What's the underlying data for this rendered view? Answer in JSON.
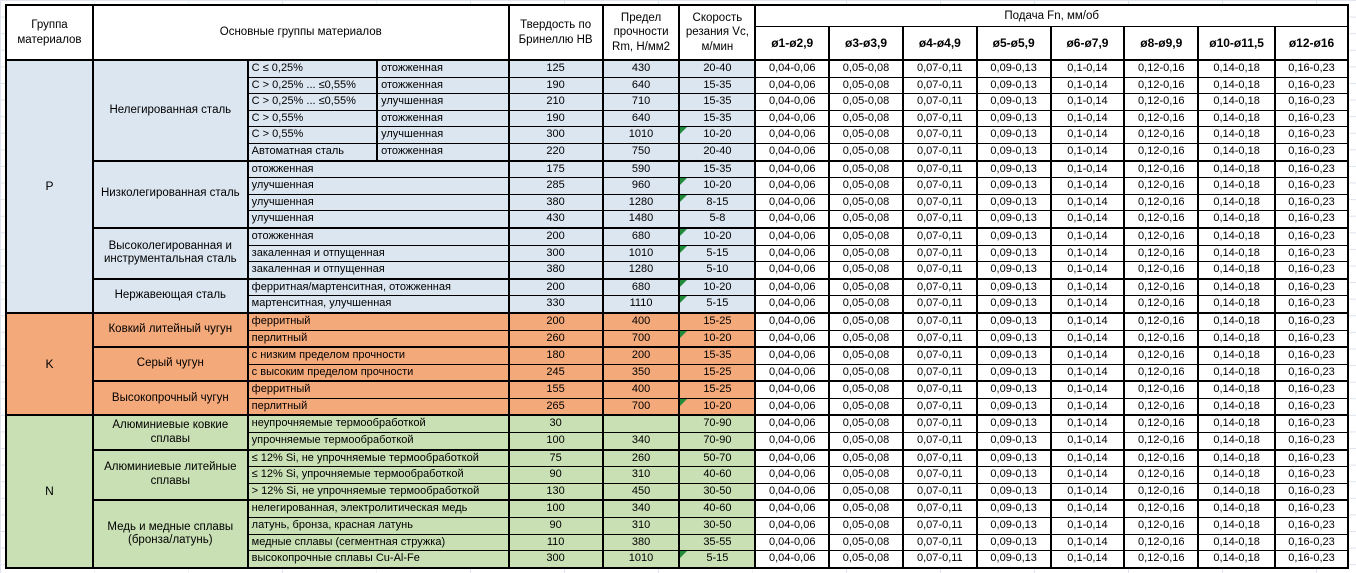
{
  "header": {
    "group_col": "Группа материалов",
    "materials_col": "Основные группы материалов",
    "hardness_col": "Твердость по Бринеллю HB",
    "strength_col": "Предел прочности Rm, Н/мм2",
    "speed_col": "Скорость резания Vc, м/мин",
    "feed_group": "Подача Fn, мм/об",
    "feed_cols": [
      "ø1-ø2,9",
      "ø3-ø3,9",
      "ø4-ø4,9",
      "ø5-ø5,9",
      "ø6-ø7,9",
      "ø8-ø9,9",
      "ø10-ø11,5",
      "ø12-ø16"
    ]
  },
  "feed_values": [
    "0,04-0,06",
    "0,05-0,08",
    "0,07-0,11",
    "0,09-0,13",
    "0,1-0,14",
    "0,12-0,16",
    "0,14-0,18",
    "0,16-0,23"
  ],
  "colors": {
    "section_p": "#DCE6F1",
    "section_k": "#F4A97A",
    "section_n": "#C9DFB4",
    "marker": "#228B3B",
    "gridline": "#DFE4EE",
    "border": "#000000"
  },
  "sections": [
    {
      "code": "P",
      "color": "#DCE6F1",
      "subgroups": [
        {
          "name": "Нелегированная сталь",
          "rows": [
            {
              "desc": [
                "C ≤ 0,25%",
                "отожженная"
              ],
              "hb": "125",
              "rm": "430",
              "vc": "20-40",
              "marker": false
            },
            {
              "desc": [
                "C > 0,25% ... ≤0,55%",
                "отожженная"
              ],
              "hb": "190",
              "rm": "640",
              "vc": "15-35",
              "marker": false
            },
            {
              "desc": [
                "C > 0,25% ... ≤0,55%",
                "улучшенная"
              ],
              "hb": "210",
              "rm": "710",
              "vc": "15-35",
              "marker": false
            },
            {
              "desc": [
                "C > 0,55%",
                "отожженная"
              ],
              "hb": "190",
              "rm": "640",
              "vc": "15-35",
              "marker": false
            },
            {
              "desc": [
                "C > 0,55%",
                "улучшенная"
              ],
              "hb": "300",
              "rm": "1010",
              "vc": "10-20",
              "marker": true
            },
            {
              "desc": [
                "Автоматная сталь",
                "отожженная"
              ],
              "hb": "220",
              "rm": "750",
              "vc": "20-40",
              "marker": false
            }
          ]
        },
        {
          "name": "Низколегированная сталь",
          "rows": [
            {
              "desc": [
                "отожженная"
              ],
              "hb": "175",
              "rm": "590",
              "vc": "15-35",
              "marker": false
            },
            {
              "desc": [
                "улучшенная"
              ],
              "hb": "285",
              "rm": "960",
              "vc": "10-20",
              "marker": true
            },
            {
              "desc": [
                "улучшенная"
              ],
              "hb": "380",
              "rm": "1280",
              "vc": "8-15",
              "marker": true
            },
            {
              "desc": [
                "улучшенная"
              ],
              "hb": "430",
              "rm": "1480",
              "vc": "5-8",
              "marker": false
            }
          ]
        },
        {
          "name": "Высоколегированная и инструментальная сталь",
          "rows": [
            {
              "desc": [
                "отожженная"
              ],
              "hb": "200",
              "rm": "680",
              "vc": "10-20",
              "marker": true
            },
            {
              "desc": [
                "закаленная и отпущенная"
              ],
              "hb": "300",
              "rm": "1010",
              "vc": "5-15",
              "marker": true
            },
            {
              "desc": [
                "закаленная и отпущенная"
              ],
              "hb": "380",
              "rm": "1280",
              "vc": "5-10",
              "marker": false
            }
          ]
        },
        {
          "name": "Нержавеющая сталь",
          "rows": [
            {
              "desc": [
                "ферритная/мартенситная, отожженная"
              ],
              "hb": "200",
              "rm": "680",
              "vc": "10-20",
              "marker": true
            },
            {
              "desc": [
                "мартенситная, улучшенная"
              ],
              "hb": "330",
              "rm": "1110",
              "vc": "5-15",
              "marker": true
            }
          ]
        }
      ]
    },
    {
      "code": "K",
      "color": "#F4A97A",
      "subgroups": [
        {
          "name": "Ковкий литейный чугун",
          "rows": [
            {
              "desc": [
                "ферритный"
              ],
              "hb": "200",
              "rm": "400",
              "vc": "15-25",
              "marker": false
            },
            {
              "desc": [
                "перлитный"
              ],
              "hb": "260",
              "rm": "700",
              "vc": "10-20",
              "marker": true
            }
          ]
        },
        {
          "name": "Серый чугун",
          "rows": [
            {
              "desc": [
                "с низким пределом прочности"
              ],
              "hb": "180",
              "rm": "200",
              "vc": "15-35",
              "marker": false
            },
            {
              "desc": [
                "с высоким пределом прочности"
              ],
              "hb": "245",
              "rm": "350",
              "vc": "15-25",
              "marker": false
            }
          ]
        },
        {
          "name": "Высокопрочный чугун",
          "rows": [
            {
              "desc": [
                "ферритный"
              ],
              "hb": "155",
              "rm": "400",
              "vc": "15-25",
              "marker": false
            },
            {
              "desc": [
                "перлитный"
              ],
              "hb": "265",
              "rm": "700",
              "vc": "10-20",
              "marker": true
            }
          ]
        }
      ]
    },
    {
      "code": "N",
      "color": "#C9DFB4",
      "subgroups": [
        {
          "name": "Алюминиевые ковкие сплавы",
          "rows": [
            {
              "desc": [
                "неупрочняемые термообработкой"
              ],
              "hb": "30",
              "rm": "",
              "vc": "70-90",
              "marker": false
            },
            {
              "desc": [
                "упрочняемые термообработкой"
              ],
              "hb": "100",
              "rm": "340",
              "vc": "70-90",
              "marker": false
            }
          ]
        },
        {
          "name": "Алюминиевые литейные сплавы",
          "rows": [
            {
              "desc": [
                "≤ 12% Si, не упрочняемые термообработкой"
              ],
              "hb": "75",
              "rm": "260",
              "vc": "50-70",
              "marker": false
            },
            {
              "desc": [
                "≤ 12% Si, упрочняемые термообработкой"
              ],
              "hb": "90",
              "rm": "310",
              "vc": "40-60",
              "marker": false
            },
            {
              "desc": [
                "> 12% Si, не упрочняемые термообработкой"
              ],
              "hb": "130",
              "rm": "450",
              "vc": "30-50",
              "marker": false
            }
          ]
        },
        {
          "name": "Медь и медные сплавы (бронза/латунь)",
          "rows": [
            {
              "desc": [
                "нелегированная, электролитическая медь"
              ],
              "hb": "100",
              "rm": "340",
              "vc": "40-60",
              "marker": false
            },
            {
              "desc": [
                "латунь, бронза, красная латунь"
              ],
              "hb": "90",
              "rm": "310",
              "vc": "30-50",
              "marker": false
            },
            {
              "desc": [
                "медные сплавы (сегментная стружка)"
              ],
              "hb": "110",
              "rm": "380",
              "vc": "35-55",
              "marker": false
            },
            {
              "desc": [
                "высокопрочные сплавы Cu-Al-Fe"
              ],
              "hb": "300",
              "rm": "1010",
              "vc": "5-15",
              "marker": true
            }
          ]
        }
      ]
    }
  ]
}
